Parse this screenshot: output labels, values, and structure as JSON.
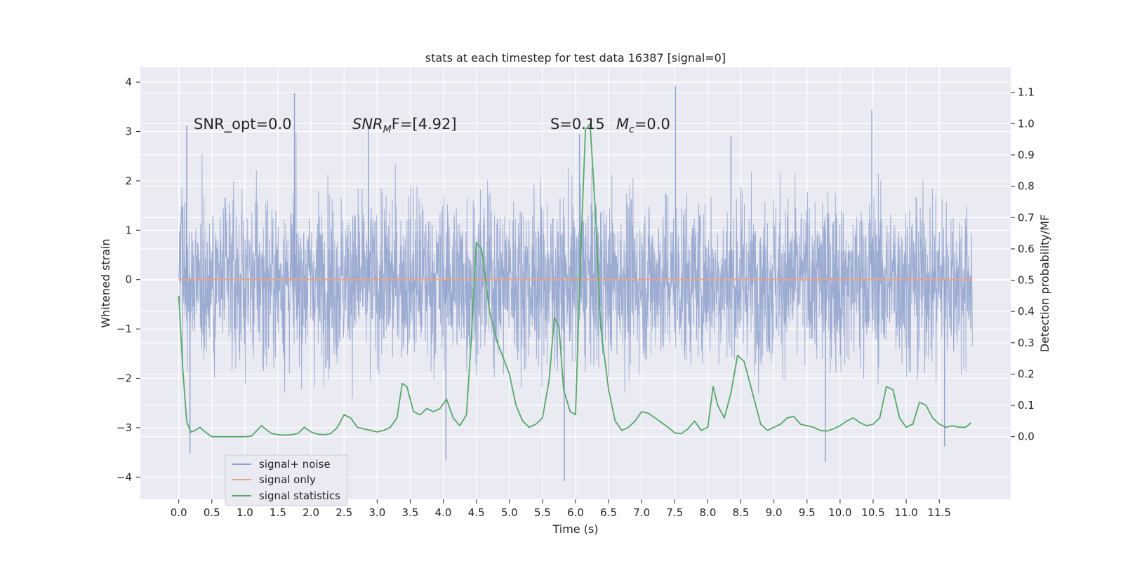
{
  "chart_data": {
    "type": "line",
    "title": "stats at each timestep for test data 16387 [signal=0]",
    "xlabel": "Time (s)",
    "ylabel_left": "Whitened strain",
    "ylabel_right": "Detection probability/MF",
    "xlim": [
      -0.58,
      12.58
    ],
    "ylim_left": [
      -4.45,
      4.3
    ],
    "ylim_right": [
      -0.2,
      1.18
    ],
    "x_ticks": [
      "0.0",
      "0.5",
      "1.0",
      "1.5",
      "2.0",
      "2.5",
      "3.0",
      "3.5",
      "4.0",
      "4.5",
      "5.0",
      "5.5",
      "6.0",
      "6.5",
      "7.0",
      "7.5",
      "8.0",
      "8.5",
      "9.0",
      "9.5",
      "10.0",
      "10.5",
      "11.0",
      "11.5"
    ],
    "y_ticks_left": [
      "4",
      "3",
      "2",
      "1",
      "0",
      "−1",
      "−2",
      "−3",
      "−4"
    ],
    "y_ticks_right": [
      "1.1",
      "1.0",
      "0.9",
      "0.8",
      "0.7",
      "0.6",
      "0.5",
      "0.4",
      "0.3",
      "0.2",
      "0.1",
      "0.0"
    ],
    "grid": true,
    "legend_position": "lower-left",
    "annotations": {
      "snr_opt": "SNR_opt=0.0",
      "snr_mf_base": "SNR",
      "snr_mf_sub": "M",
      "snr_mf_rest": "F=[4.92]",
      "s_stat": "S=0.15",
      "mc_base": "M",
      "mc_sub": "c",
      "mc_rest": "=0.0"
    },
    "series": [
      {
        "name": "signal+ noise",
        "color": "#8da0cb",
        "axis": "left",
        "x_range": [
          0.0,
          12.0
        ],
        "envelope_typical": 1.2,
        "peaks": [
          {
            "x": 0.12,
            "y": 3.12
          },
          {
            "x": 1.75,
            "y": 3.78
          },
          {
            "x": 2.87,
            "y": 3.05
          },
          {
            "x": 7.51,
            "y": 3.92
          },
          {
            "x": 10.48,
            "y": 3.43
          },
          {
            "x": 0.17,
            "y": -3.52
          },
          {
            "x": 4.04,
            "y": -3.65
          },
          {
            "x": 5.83,
            "y": -4.08
          },
          {
            "x": 9.78,
            "y": -3.7
          },
          {
            "x": 11.58,
            "y": -3.38
          },
          {
            "x": 6.06,
            "y": 2.95
          },
          {
            "x": 8.35,
            "y": 2.9
          }
        ]
      },
      {
        "name": "signal only",
        "color": "#e5a58b",
        "axis": "left",
        "x": [
          0.0,
          12.0
        ],
        "y": [
          0.0,
          0.0
        ]
      },
      {
        "name": "signal statistics",
        "color": "#55a868",
        "axis": "right",
        "x": [
          0.0,
          0.06,
          0.12,
          0.18,
          0.25,
          0.32,
          0.4,
          0.5,
          0.6,
          0.8,
          1.0,
          1.1,
          1.25,
          1.4,
          1.55,
          1.7,
          1.8,
          1.9,
          2.0,
          2.1,
          2.2,
          2.3,
          2.4,
          2.5,
          2.6,
          2.7,
          2.9,
          3.0,
          3.1,
          3.2,
          3.3,
          3.38,
          3.45,
          3.55,
          3.65,
          3.75,
          3.85,
          3.95,
          4.05,
          4.15,
          4.25,
          4.35,
          4.42,
          4.5,
          4.58,
          4.7,
          4.82,
          5.0,
          5.1,
          5.2,
          5.3,
          5.4,
          5.5,
          5.6,
          5.68,
          5.75,
          5.82,
          5.92,
          6.0,
          6.08,
          6.15,
          6.22,
          6.3,
          6.38,
          6.5,
          6.6,
          6.7,
          6.8,
          6.9,
          7.0,
          7.1,
          7.2,
          7.3,
          7.4,
          7.5,
          7.6,
          7.7,
          7.8,
          7.9,
          8.0,
          8.08,
          8.15,
          8.25,
          8.35,
          8.45,
          8.55,
          8.7,
          8.8,
          8.9,
          9.0,
          9.1,
          9.2,
          9.3,
          9.4,
          9.5,
          9.6,
          9.7,
          9.8,
          9.9,
          10.0,
          10.1,
          10.2,
          10.3,
          10.4,
          10.5,
          10.6,
          10.7,
          10.8,
          10.9,
          11.0,
          11.1,
          11.2,
          11.3,
          11.4,
          11.5,
          11.6,
          11.7,
          11.8,
          11.9,
          11.98
        ],
        "y": [
          0.45,
          0.22,
          0.05,
          0.015,
          0.02,
          0.03,
          0.015,
          0.0,
          0.0,
          0.0,
          0.0,
          0.002,
          0.035,
          0.01,
          0.005,
          0.006,
          0.01,
          0.03,
          0.015,
          0.008,
          0.006,
          0.01,
          0.03,
          0.07,
          0.06,
          0.03,
          0.02,
          0.015,
          0.02,
          0.03,
          0.06,
          0.17,
          0.16,
          0.08,
          0.07,
          0.09,
          0.08,
          0.09,
          0.12,
          0.06,
          0.035,
          0.07,
          0.3,
          0.62,
          0.6,
          0.4,
          0.3,
          0.2,
          0.1,
          0.05,
          0.03,
          0.04,
          0.06,
          0.18,
          0.38,
          0.35,
          0.15,
          0.08,
          0.07,
          0.6,
          0.98,
          1.0,
          0.72,
          0.35,
          0.15,
          0.05,
          0.02,
          0.03,
          0.05,
          0.08,
          0.075,
          0.06,
          0.045,
          0.03,
          0.012,
          0.01,
          0.025,
          0.05,
          0.02,
          0.03,
          0.16,
          0.1,
          0.06,
          0.14,
          0.26,
          0.24,
          0.12,
          0.04,
          0.02,
          0.03,
          0.04,
          0.06,
          0.065,
          0.04,
          0.035,
          0.03,
          0.02,
          0.018,
          0.025,
          0.035,
          0.05,
          0.06,
          0.045,
          0.035,
          0.04,
          0.06,
          0.16,
          0.15,
          0.06,
          0.03,
          0.04,
          0.11,
          0.1,
          0.06,
          0.04,
          0.03,
          0.035,
          0.03,
          0.03,
          0.045
        ]
      }
    ]
  }
}
